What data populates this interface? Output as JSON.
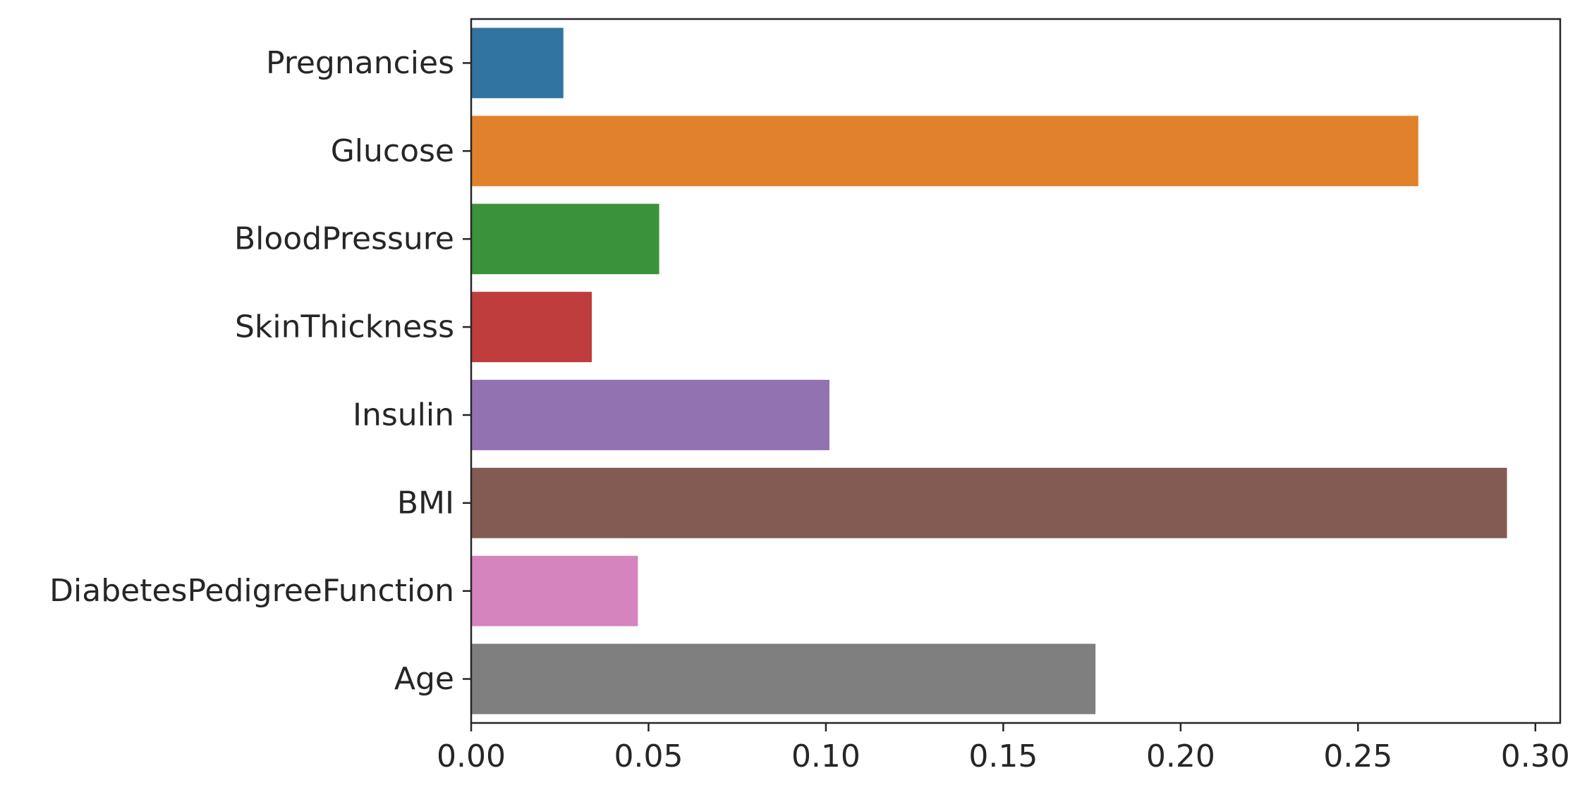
{
  "chart_data": {
    "type": "bar",
    "orientation": "horizontal",
    "categories": [
      "Pregnancies",
      "Glucose",
      "BloodPressure",
      "SkinThickness",
      "Insulin",
      "BMI",
      "DiabetesPedigreeFunction",
      "Age"
    ],
    "values": [
      0.026,
      0.267,
      0.053,
      0.034,
      0.101,
      0.292,
      0.047,
      0.176
    ],
    "colors": [
      "#3274a1",
      "#e1812c",
      "#3a923a",
      "#c03d3e",
      "#9372b2",
      "#845b53",
      "#d684bd",
      "#7f7f7f"
    ],
    "xlim": [
      0,
      0.307
    ],
    "xticks": [
      0,
      0.05,
      0.1,
      0.15,
      0.2,
      0.25,
      0.3
    ],
    "xtick_labels": [
      "0.00",
      "0.05",
      "0.10",
      "0.15",
      "0.20",
      "0.25",
      "0.30"
    ],
    "title": "",
    "xlabel": "",
    "ylabel": "",
    "grid": false
  }
}
